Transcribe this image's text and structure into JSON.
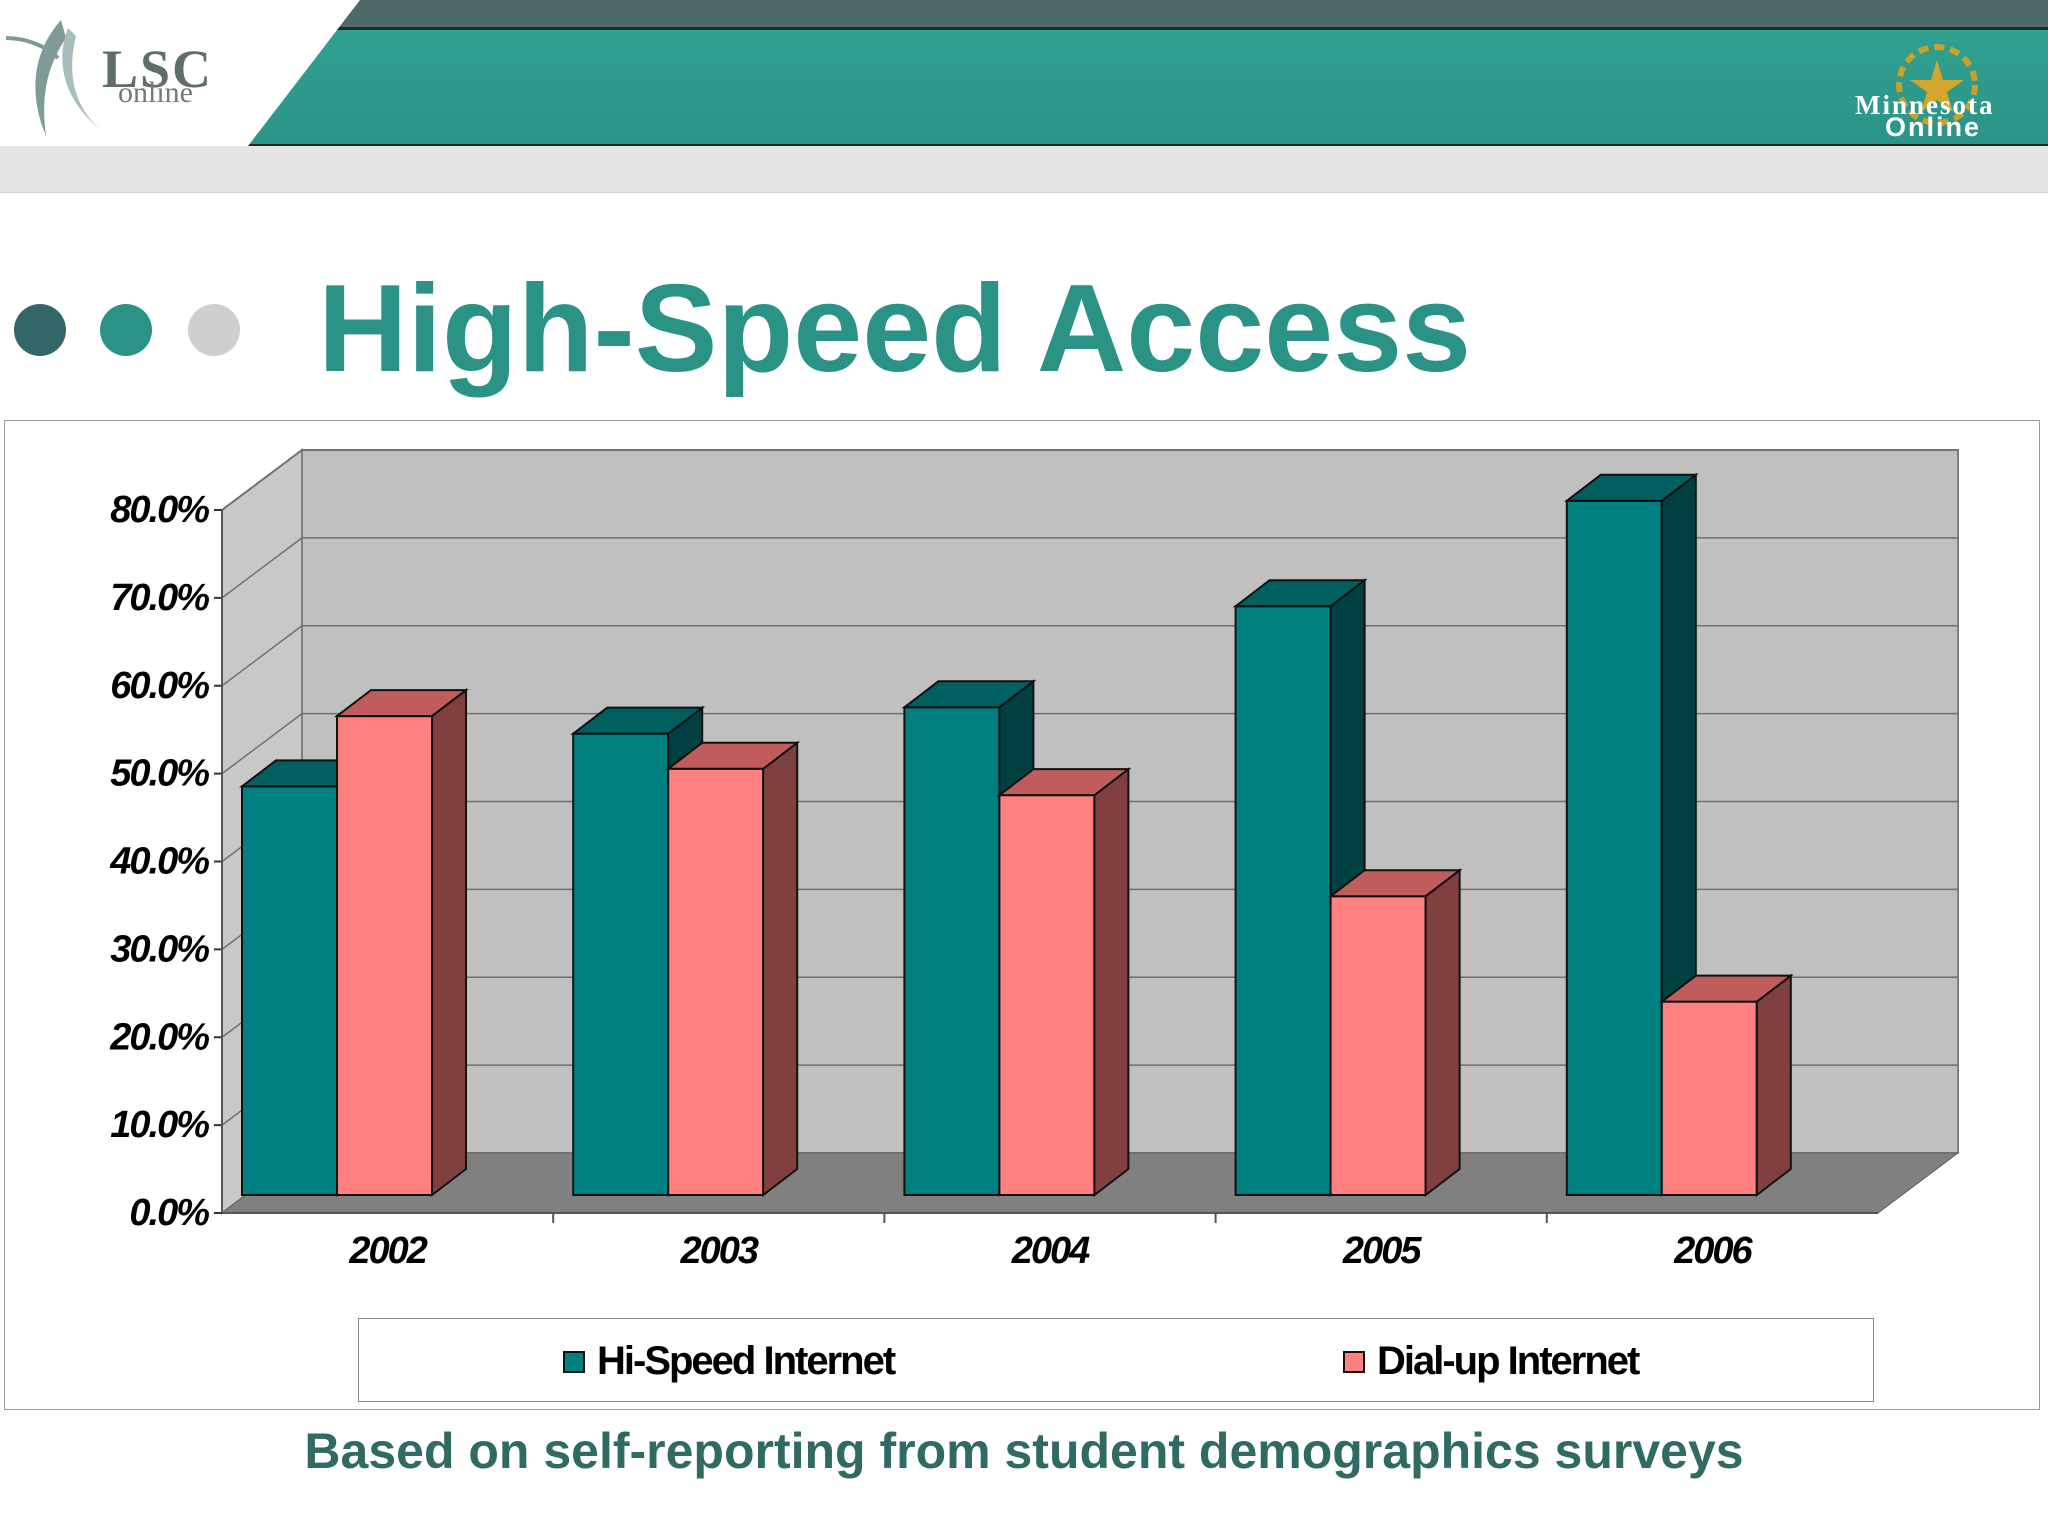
{
  "header": {
    "logo_left_line1": "LSC",
    "logo_left_line2": "online",
    "logo_right_line1": "Minnesota",
    "logo_right_line2": "Online",
    "colors": {
      "dark_band": "#4b6a68",
      "teal_band": "#2b9489",
      "gray_band": "#e6e6e6"
    }
  },
  "title": "High-Speed Access",
  "title_dots": [
    "#336666",
    "#2b9385",
    "#cfcfcf"
  ],
  "chart_data": {
    "type": "bar",
    "style": "3d-clustered-column",
    "categories": [
      "2002",
      "2003",
      "2004",
      "2005",
      "2006"
    ],
    "series": [
      {
        "name": "Hi-Speed Internet",
        "values": [
          46.5,
          52.5,
          55.5,
          67,
          79
        ],
        "color": "#008080",
        "side_color": "#004040",
        "top_color": "#006060"
      },
      {
        "name": "Dial-up Internet",
        "values": [
          54.5,
          48.5,
          45.5,
          34,
          22
        ],
        "color": "#ff8080",
        "side_color": "#804040",
        "top_color": "#c05c5c"
      }
    ],
    "yticks": [
      "0.0%",
      "10.0%",
      "20.0%",
      "30.0%",
      "40.0%",
      "50.0%",
      "60.0%",
      "70.0%",
      "80.0%"
    ],
    "ylim": [
      0,
      80
    ],
    "grid": true,
    "legend_position": "bottom",
    "wall_color": "#c0c0c0",
    "floor_color": "#808080"
  },
  "footnote": "Based on self-reporting from student demographics surveys"
}
